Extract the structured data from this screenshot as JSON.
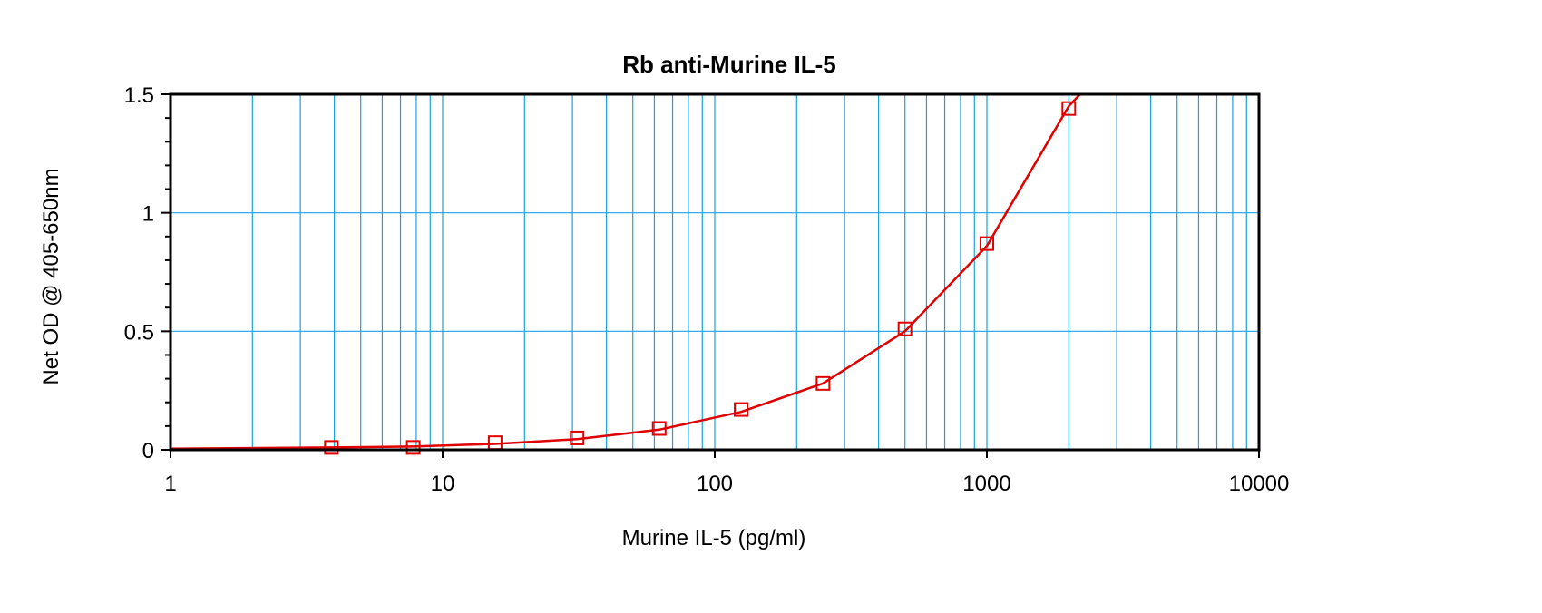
{
  "chart_data": {
    "type": "scatter",
    "title": "Rb anti-Murine IL-5",
    "xlabel": "Murine IL-5 (pg/ml)",
    "ylabel": "Net OD @ 405-650nm",
    "x_scale": "log",
    "xlim": [
      1,
      10000
    ],
    "ylim": [
      0,
      1.5
    ],
    "x_ticks": [
      1,
      10,
      100,
      1000,
      10000
    ],
    "x_tick_labels": [
      "1",
      "10",
      "100",
      "1000",
      "10000"
    ],
    "y_ticks": [
      0,
      0.5,
      1,
      1.5
    ],
    "y_tick_labels": [
      "0",
      "0.5",
      "1",
      "1.5"
    ],
    "grid": true,
    "colors": {
      "grid": "#1ba1e2",
      "series": "#e00000",
      "frame": "#000000"
    },
    "series": [
      {
        "marker": "square",
        "points": [
          {
            "x": 3.9,
            "y": 0.01
          },
          {
            "x": 7.8,
            "y": 0.01
          },
          {
            "x": 15.6,
            "y": 0.03
          },
          {
            "x": 31.2,
            "y": 0.05
          },
          {
            "x": 62.5,
            "y": 0.09
          },
          {
            "x": 125,
            "y": 0.17
          },
          {
            "x": 250,
            "y": 0.28
          },
          {
            "x": 500,
            "y": 0.51
          },
          {
            "x": 1000,
            "y": 0.87
          },
          {
            "x": 2000,
            "y": 1.44
          }
        ]
      }
    ],
    "fit_curve": {
      "points": [
        {
          "x": 1,
          "y": 0.005
        },
        {
          "x": 3.9,
          "y": 0.01
        },
        {
          "x": 7.8,
          "y": 0.014
        },
        {
          "x": 15.6,
          "y": 0.025
        },
        {
          "x": 31.2,
          "y": 0.045
        },
        {
          "x": 62.5,
          "y": 0.085
        },
        {
          "x": 125,
          "y": 0.16
        },
        {
          "x": 250,
          "y": 0.28
        },
        {
          "x": 500,
          "y": 0.5
        },
        {
          "x": 1000,
          "y": 0.86
        },
        {
          "x": 2000,
          "y": 1.45
        },
        {
          "x": 2200,
          "y": 1.5
        }
      ]
    }
  }
}
